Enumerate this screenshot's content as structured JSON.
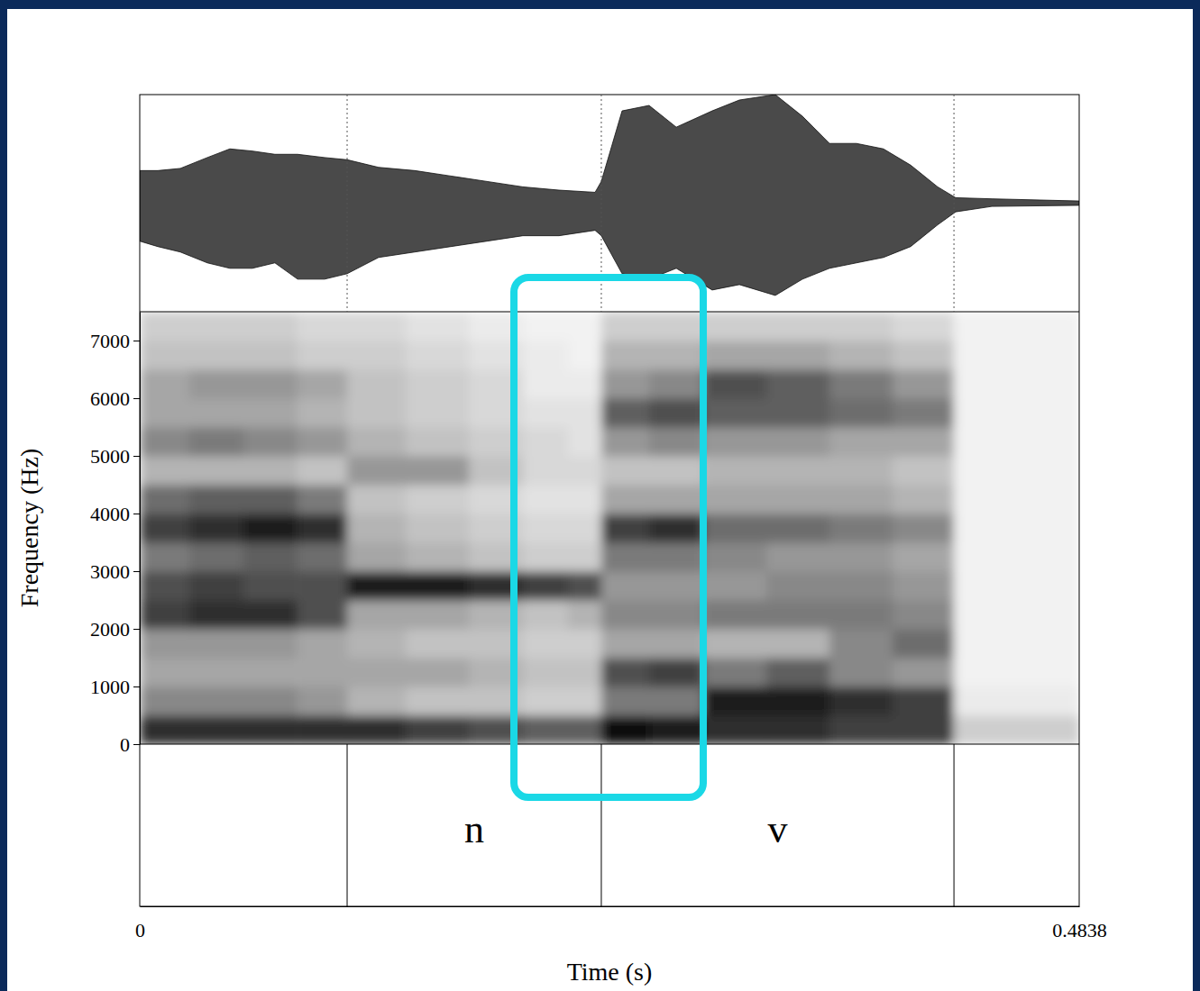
{
  "chart_data": {
    "type": "spectrogram",
    "xlabel": "Time (s)",
    "ylabel": "Frequency (Hz)",
    "xlim": [
      0,
      0.4838
    ],
    "xticks": [
      0,
      0.4838
    ],
    "ylim": [
      0,
      7500
    ],
    "yticks": [
      0,
      1000,
      2000,
      3000,
      4000,
      5000,
      6000,
      7000
    ],
    "time_bins": [
      0,
      0.0255,
      0.0534,
      0.0813,
      0.1068,
      0.137,
      0.1695,
      0.1973,
      0.2205,
      0.2377,
      0.2623,
      0.2902,
      0.3227,
      0.3552,
      0.3877,
      0.4193,
      0.4838
    ],
    "freq_bins": [
      0,
      500,
      1000,
      1500,
      2000,
      2500,
      3000,
      3500,
      4000,
      4500,
      5000,
      5500,
      6000,
      6500,
      7000,
      7500
    ],
    "zlim": [
      0,
      1
    ],
    "cells": [
      [
        0.85,
        0.55,
        0.45,
        0.5,
        0.8,
        0.75,
        0.6,
        0.8,
        0.65,
        0.4,
        0.55,
        0.45,
        0.45,
        0.35,
        0.3
      ],
      [
        0.85,
        0.55,
        0.45,
        0.5,
        0.85,
        0.8,
        0.65,
        0.85,
        0.7,
        0.4,
        0.6,
        0.45,
        0.5,
        0.35,
        0.3
      ],
      [
        0.85,
        0.55,
        0.45,
        0.5,
        0.85,
        0.75,
        0.7,
        0.9,
        0.7,
        0.4,
        0.55,
        0.45,
        0.5,
        0.35,
        0.3
      ],
      [
        0.85,
        0.5,
        0.45,
        0.45,
        0.75,
        0.75,
        0.65,
        0.85,
        0.6,
        0.35,
        0.5,
        0.4,
        0.45,
        0.3,
        0.25
      ],
      [
        0.85,
        0.4,
        0.45,
        0.4,
        0.45,
        0.9,
        0.45,
        0.4,
        0.35,
        0.5,
        0.4,
        0.35,
        0.35,
        0.3,
        0.25
      ],
      [
        0.8,
        0.35,
        0.45,
        0.35,
        0.45,
        0.9,
        0.4,
        0.35,
        0.3,
        0.5,
        0.35,
        0.3,
        0.3,
        0.25,
        0.2
      ],
      [
        0.75,
        0.35,
        0.4,
        0.35,
        0.4,
        0.85,
        0.35,
        0.3,
        0.25,
        0.35,
        0.3,
        0.25,
        0.25,
        0.2,
        0.15
      ],
      [
        0.7,
        0.3,
        0.35,
        0.3,
        0.35,
        0.8,
        0.3,
        0.25,
        0.2,
        0.25,
        0.25,
        0.2,
        0.15,
        0.15,
        0.1
      ],
      [
        0.7,
        0.3,
        0.35,
        0.3,
        0.4,
        0.75,
        0.3,
        0.25,
        0.2,
        0.25,
        0.2,
        0.2,
        0.15,
        0.1,
        0.1
      ],
      [
        0.95,
        0.6,
        0.75,
        0.45,
        0.55,
        0.5,
        0.6,
        0.8,
        0.45,
        0.35,
        0.5,
        0.7,
        0.5,
        0.4,
        0.3
      ],
      [
        0.9,
        0.6,
        0.8,
        0.45,
        0.55,
        0.5,
        0.6,
        0.85,
        0.45,
        0.35,
        0.55,
        0.75,
        0.55,
        0.4,
        0.3
      ],
      [
        0.85,
        0.9,
        0.6,
        0.4,
        0.6,
        0.5,
        0.55,
        0.65,
        0.45,
        0.4,
        0.5,
        0.7,
        0.75,
        0.45,
        0.3
      ],
      [
        0.85,
        0.9,
        0.7,
        0.4,
        0.6,
        0.55,
        0.5,
        0.65,
        0.45,
        0.4,
        0.5,
        0.7,
        0.7,
        0.45,
        0.3
      ],
      [
        0.8,
        0.85,
        0.55,
        0.55,
        0.6,
        0.55,
        0.5,
        0.6,
        0.45,
        0.4,
        0.45,
        0.65,
        0.6,
        0.4,
        0.3
      ],
      [
        0.8,
        0.8,
        0.5,
        0.65,
        0.55,
        0.5,
        0.45,
        0.55,
        0.4,
        0.35,
        0.45,
        0.6,
        0.5,
        0.35,
        0.25
      ],
      [
        0.3,
        0.15,
        0.1,
        0.1,
        0.1,
        0.1,
        0.1,
        0.1,
        0.1,
        0.1,
        0.1,
        0.1,
        0.1,
        0.1,
        0.1
      ]
    ],
    "waveform": {
      "ylim": [
        -1,
        1
      ],
      "x": [
        0,
        0.0093,
        0.0209,
        0.0348,
        0.0464,
        0.058,
        0.0696,
        0.0813,
        0.0952,
        0.1068,
        0.123,
        0.1416,
        0.1602,
        0.1788,
        0.1973,
        0.2159,
        0.2345,
        0.2377,
        0.2484,
        0.2623,
        0.2763,
        0.2948,
        0.3088,
        0.3273,
        0.3413,
        0.3552,
        0.3691,
        0.383,
        0.397,
        0.4109,
        0.4202,
        0.4388,
        0.4838
      ],
      "upper": [
        0.3,
        0.3,
        0.32,
        0.42,
        0.5,
        0.48,
        0.45,
        0.45,
        0.42,
        0.4,
        0.33,
        0.3,
        0.25,
        0.2,
        0.15,
        0.12,
        0.1,
        0.2,
        0.85,
        0.9,
        0.7,
        0.85,
        0.95,
        1.0,
        0.8,
        0.55,
        0.55,
        0.5,
        0.35,
        0.15,
        0.05,
        0.04,
        0.02
      ],
      "lower": [
        -0.35,
        -0.4,
        -0.45,
        -0.55,
        -0.6,
        -0.6,
        -0.55,
        -0.7,
        -0.7,
        -0.65,
        -0.5,
        -0.45,
        -0.4,
        -0.35,
        -0.3,
        -0.3,
        -0.25,
        -0.3,
        -0.65,
        -0.7,
        -0.6,
        -0.8,
        -0.75,
        -0.85,
        -0.7,
        -0.6,
        -0.55,
        -0.5,
        -0.4,
        -0.2,
        -0.08,
        -0.03,
        -0.02
      ]
    },
    "segments": {
      "boundaries": [
        0.1068,
        0.2377,
        0.4193
      ],
      "intervals": [
        {
          "start": 0.1068,
          "end": 0.2377,
          "label": "n"
        },
        {
          "start": 0.2377,
          "end": 0.4193,
          "label": "v"
        }
      ]
    },
    "highlight": {
      "start": 0.1927,
      "end": 0.2902,
      "color": "#1ad8e6"
    }
  }
}
